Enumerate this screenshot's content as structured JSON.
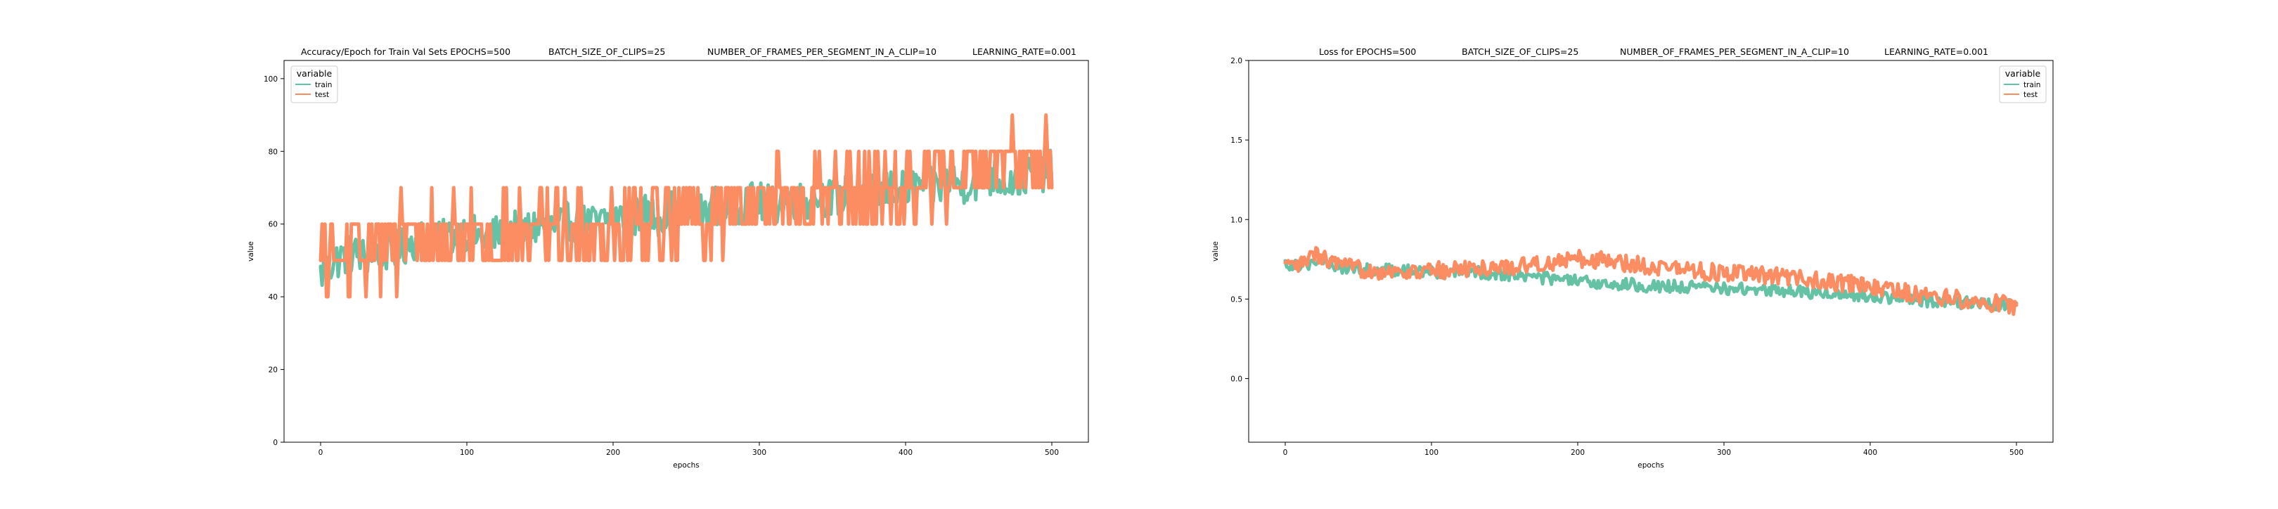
{
  "colors": {
    "train": "#66c2a5",
    "test": "#fc8d62",
    "frame": "#000000",
    "legend_bg": "#ffffff",
    "legend_border": "#cccccc"
  },
  "chart_data": [
    {
      "type": "line",
      "title_parts": [
        "Accuracy/Epoch for Train Val Sets EPOCHS=500",
        "BATCH_SIZE_OF_CLIPS=25",
        "NUMBER_OF_FRAMES_PER_SEGMENT_IN_A_CLIP=10",
        "LEARNING_RATE=0.001"
      ],
      "xlabel": "epochs",
      "ylabel": "value",
      "xlim": [
        -25,
        525
      ],
      "ylim": [
        0,
        105
      ],
      "xticks": [
        0,
        100,
        200,
        300,
        400,
        500
      ],
      "yticks": [
        0,
        20,
        40,
        60,
        80,
        100
      ],
      "ytick_labels": [
        "0",
        "20",
        "40",
        "60",
        "80",
        "100"
      ],
      "legend": {
        "title": "variable",
        "placement": "top-left",
        "entries": [
          "train",
          "test"
        ]
      },
      "grid": false,
      "series": [
        {
          "name": "train",
          "x": [
            0,
            10,
            20,
            30,
            40,
            50,
            60,
            70,
            80,
            90,
            100,
            110,
            120,
            130,
            140,
            150,
            160,
            170,
            180,
            190,
            200,
            210,
            220,
            230,
            240,
            250,
            260,
            270,
            280,
            290,
            300,
            310,
            320,
            330,
            340,
            350,
            360,
            370,
            380,
            390,
            400,
            410,
            420,
            430,
            440,
            450,
            460,
            470,
            480,
            490,
            500
          ],
          "y": [
            46,
            50,
            52,
            51,
            53,
            52,
            55,
            56,
            55,
            57,
            58,
            56,
            57,
            59,
            58,
            60,
            59,
            61,
            60,
            60,
            62,
            61,
            63,
            62,
            64,
            64,
            63,
            65,
            64,
            66,
            66,
            65,
            67,
            66,
            68,
            67,
            68,
            69,
            68,
            70,
            69,
            71,
            70,
            72,
            71,
            72,
            73,
            72,
            73,
            74,
            75
          ],
          "noise": 5.5
        },
        {
          "name": "test",
          "x": [
            0,
            10,
            20,
            30,
            40,
            50,
            60,
            70,
            80,
            90,
            100,
            110,
            120,
            130,
            140,
            150,
            160,
            170,
            180,
            190,
            200,
            210,
            220,
            230,
            240,
            250,
            260,
            270,
            280,
            290,
            300,
            310,
            320,
            330,
            340,
            350,
            360,
            370,
            380,
            390,
            400,
            410,
            420,
            430,
            440,
            450,
            460,
            470,
            480,
            490,
            500
          ],
          "y": [
            50,
            50,
            52,
            53,
            55,
            55,
            56,
            56,
            57,
            57,
            57,
            56,
            56,
            57,
            57,
            57,
            58,
            58,
            58,
            59,
            59,
            60,
            61,
            62,
            62,
            63,
            63,
            64,
            65,
            65,
            66,
            66,
            67,
            67,
            68,
            68,
            69,
            69,
            70,
            70,
            71,
            71,
            72,
            73,
            73,
            74,
            74,
            75,
            76,
            76,
            80
          ],
          "noise": 11
        }
      ]
    },
    {
      "type": "line",
      "title_parts": [
        "Loss for  EPOCHS=500",
        "BATCH_SIZE_OF_CLIPS=25",
        "NUMBER_OF_FRAMES_PER_SEGMENT_IN_A_CLIP=10",
        "LEARNING_RATE=0.001"
      ],
      "xlabel": "epochs",
      "ylabel": "value",
      "xlim": [
        -25,
        525
      ],
      "ylim": [
        -0.4,
        2.0
      ],
      "xticks": [
        0,
        100,
        200,
        300,
        400,
        500
      ],
      "yticks": [
        0.0,
        0.5,
        1.0,
        1.5,
        2.0
      ],
      "ytick_labels": [
        "0.0",
        "0.5",
        "1.0",
        "1.5",
        "2.0"
      ],
      "legend": {
        "title": "variable",
        "placement": "top-right",
        "entries": [
          "train",
          "test"
        ]
      },
      "grid": false,
      "series": [
        {
          "name": "train",
          "x": [
            0,
            10,
            20,
            30,
            40,
            50,
            60,
            70,
            80,
            90,
            100,
            110,
            120,
            130,
            140,
            150,
            160,
            170,
            180,
            190,
            200,
            210,
            220,
            230,
            240,
            250,
            260,
            270,
            280,
            290,
            300,
            310,
            320,
            330,
            340,
            350,
            360,
            370,
            380,
            390,
            400,
            410,
            420,
            430,
            440,
            450,
            460,
            470,
            480,
            490,
            500
          ],
          "y": [
            0.72,
            0.72,
            0.73,
            0.72,
            0.7,
            0.69,
            0.68,
            0.68,
            0.68,
            0.67,
            0.67,
            0.67,
            0.67,
            0.67,
            0.66,
            0.66,
            0.65,
            0.64,
            0.63,
            0.62,
            0.61,
            0.6,
            0.6,
            0.59,
            0.59,
            0.58,
            0.58,
            0.58,
            0.57,
            0.57,
            0.57,
            0.56,
            0.56,
            0.56,
            0.55,
            0.55,
            0.54,
            0.54,
            0.53,
            0.53,
            0.52,
            0.51,
            0.5,
            0.5,
            0.49,
            0.49,
            0.48,
            0.48,
            0.47,
            0.47,
            0.47
          ],
          "noise": 0.04
        },
        {
          "name": "test",
          "x": [
            0,
            10,
            20,
            30,
            40,
            50,
            60,
            70,
            80,
            90,
            100,
            110,
            120,
            130,
            140,
            150,
            160,
            170,
            180,
            190,
            200,
            210,
            220,
            230,
            240,
            250,
            260,
            270,
            280,
            290,
            300,
            310,
            320,
            330,
            340,
            350,
            360,
            370,
            380,
            390,
            400,
            410,
            420,
            430,
            440,
            450,
            460,
            470,
            480,
            490,
            500
          ],
          "y": [
            0.7,
            0.71,
            0.78,
            0.74,
            0.7,
            0.69,
            0.68,
            0.68,
            0.67,
            0.67,
            0.68,
            0.68,
            0.69,
            0.69,
            0.7,
            0.7,
            0.71,
            0.72,
            0.73,
            0.74,
            0.75,
            0.75,
            0.74,
            0.73,
            0.72,
            0.71,
            0.7,
            0.69,
            0.68,
            0.67,
            0.66,
            0.66,
            0.65,
            0.65,
            0.64,
            0.63,
            0.62,
            0.61,
            0.6,
            0.59,
            0.57,
            0.56,
            0.55,
            0.53,
            0.52,
            0.51,
            0.5,
            0.49,
            0.48,
            0.47,
            0.45
          ],
          "noise": 0.055
        }
      ]
    }
  ]
}
